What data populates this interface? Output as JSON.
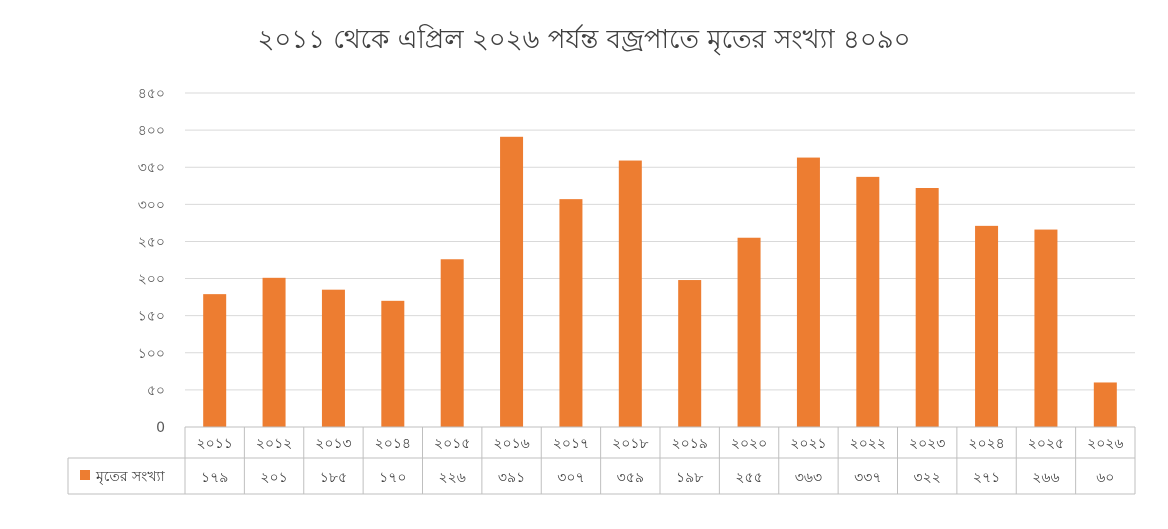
{
  "chart_data": {
    "type": "bar",
    "title": "২০১১ থেকে এপ্রিল ২০২৬ পর্যন্ত বজ্রপাতে মৃতের সংখ্যা ৪০৯০",
    "categories": [
      "২০১১",
      "২০১২",
      "২০১৩",
      "২০১৪",
      "২০১৫",
      "২০১৬",
      "২০১৭",
      "২০১৮",
      "২০১৯",
      "২০২০",
      "২০২১",
      "২০২২",
      "২০২৩",
      "২০২৪",
      "২০২৫",
      "২০২৬"
    ],
    "series": [
      {
        "name": "মৃতের সংখ্যা",
        "values": [
          179,
          201,
          185,
          170,
          226,
          391,
          307,
          359,
          198,
          255,
          363,
          337,
          322,
          271,
          266,
          60
        ],
        "labels": [
          "১৭৯",
          "২০১",
          "১৮৫",
          "১৭০",
          "২২৬",
          "৩৯১",
          "৩০৭",
          "৩৫৯",
          "১৯৮",
          "২৫৫",
          "৩৬৩",
          "৩৩৭",
          "৩২২",
          "২৭১",
          "২৬৬",
          "৬০"
        ],
        "color": "#ED7D31"
      }
    ],
    "ylim": [
      0,
      450
    ],
    "yticks": [
      0,
      50,
      100,
      150,
      200,
      250,
      300,
      350,
      400,
      450
    ],
    "ytick_labels": [
      "0",
      "৫০",
      "১০০",
      "১৫০",
      "২০০",
      "২৫০",
      "৩০০",
      "৩৫০",
      "৪০০",
      "৪৫০"
    ],
    "grid": true,
    "legend": "data-table",
    "xlabel": "",
    "ylabel": ""
  }
}
